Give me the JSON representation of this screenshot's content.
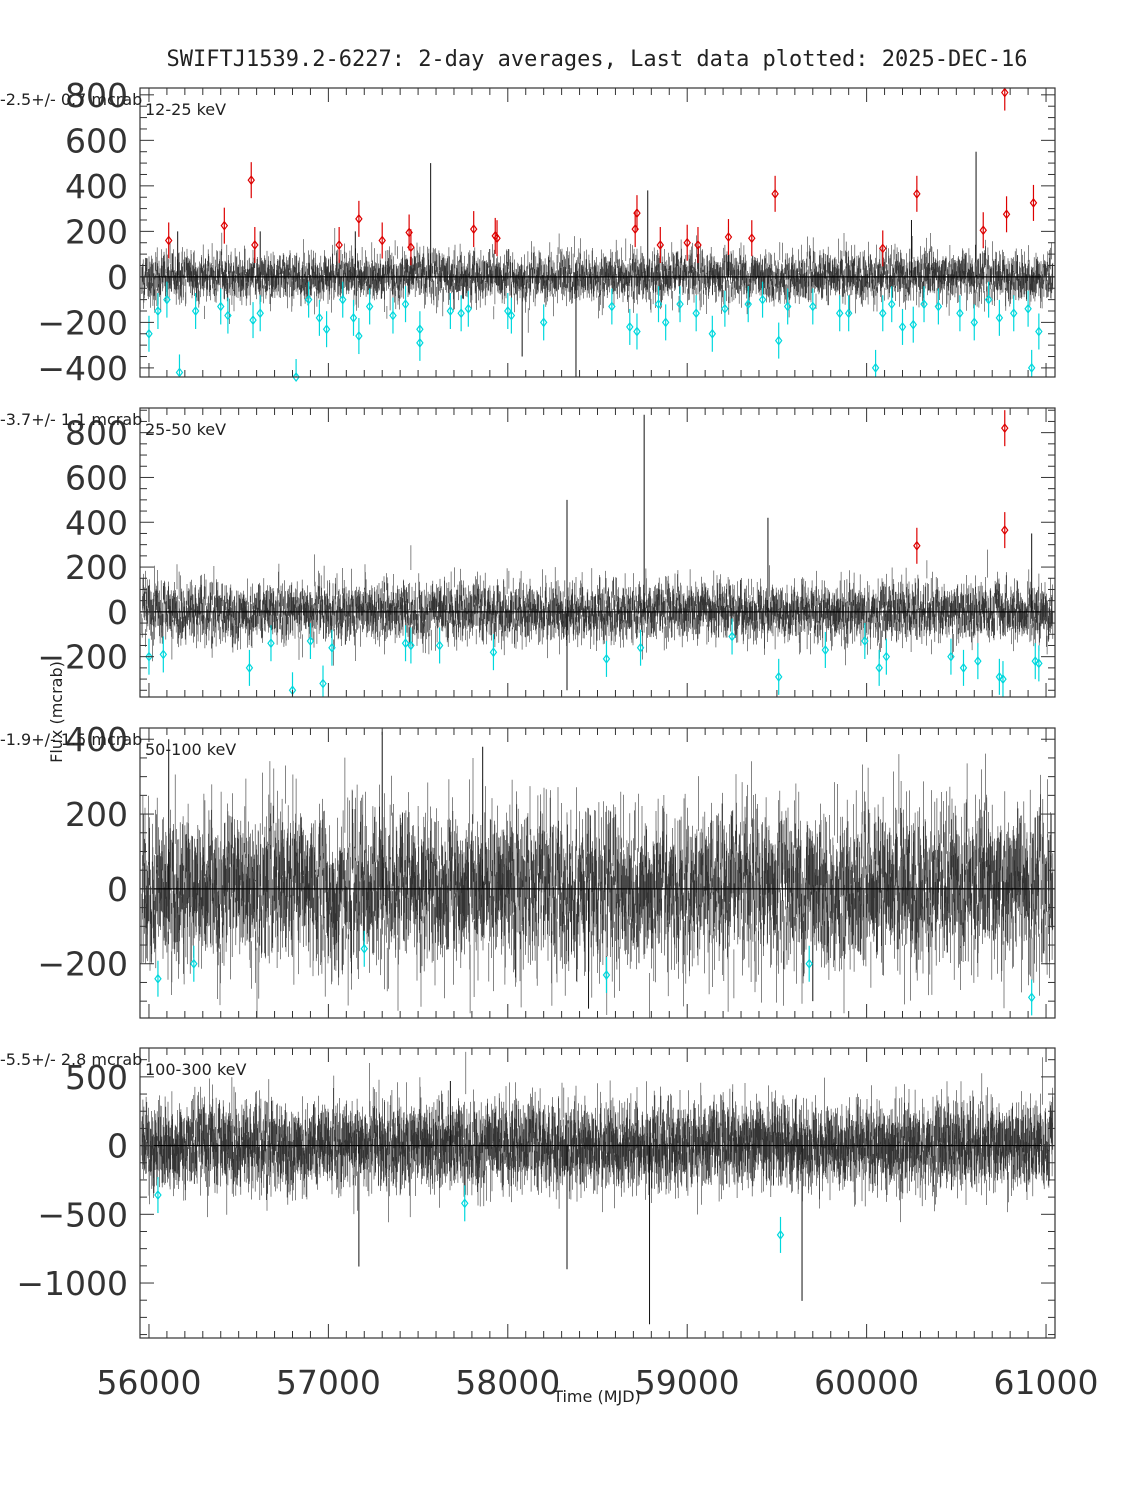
{
  "chart_data": {
    "type": "scatter",
    "title": "SWIFTJ1539.2-6227:  2-day averages,  Last data plotted: 2025-DEC-16",
    "xlabel": "Time (MJD)",
    "ylabel": "Flux (mcrab)",
    "xlim": [
      55950,
      61050
    ],
    "x_ticks": [
      56000,
      57000,
      58000,
      59000,
      60000,
      61000
    ],
    "panels": [
      {
        "band": "12-25 keV",
        "mean_text": "-2.5+/-  0.7 mcrab",
        "ylim": [
          -440,
          830
        ],
        "y_ticks": [
          -400,
          -200,
          0,
          200,
          400,
          600,
          800
        ],
        "noise_sigma": 45,
        "err": 55,
        "positive_outliers": [
          [
            56110,
            160
          ],
          [
            56420,
            225
          ],
          [
            56570,
            425
          ],
          [
            56590,
            140
          ],
          [
            57060,
            140
          ],
          [
            57170,
            255
          ],
          [
            57300,
            160
          ],
          [
            57450,
            195
          ],
          [
            57460,
            130
          ],
          [
            57810,
            210
          ],
          [
            57930,
            180
          ],
          [
            57940,
            170
          ],
          [
            58710,
            210
          ],
          [
            58720,
            280
          ],
          [
            58850,
            140
          ],
          [
            59000,
            150
          ],
          [
            59060,
            140
          ],
          [
            59230,
            175
          ],
          [
            59360,
            170
          ],
          [
            59490,
            365
          ],
          [
            60090,
            125
          ],
          [
            60280,
            365
          ],
          [
            60650,
            205
          ],
          [
            60780,
            275
          ],
          [
            60930,
            325
          ],
          [
            60770,
            810
          ]
        ],
        "negative_outliers": [
          [
            56000,
            -250
          ],
          [
            56050,
            -150
          ],
          [
            56100,
            -100
          ],
          [
            56170,
            -420
          ],
          [
            56260,
            -150
          ],
          [
            56400,
            -130
          ],
          [
            56440,
            -170
          ],
          [
            56580,
            -190
          ],
          [
            56620,
            -160
          ],
          [
            56820,
            -440
          ],
          [
            56890,
            -100
          ],
          [
            56950,
            -180
          ],
          [
            56990,
            -230
          ],
          [
            57080,
            -100
          ],
          [
            57140,
            -180
          ],
          [
            57170,
            -260
          ],
          [
            57230,
            -130
          ],
          [
            57360,
            -170
          ],
          [
            57430,
            -120
          ],
          [
            57510,
            -230
          ],
          [
            57510,
            -290
          ],
          [
            57680,
            -150
          ],
          [
            57740,
            -160
          ],
          [
            57780,
            -140
          ],
          [
            58000,
            -150
          ],
          [
            58020,
            -170
          ],
          [
            58200,
            -200
          ],
          [
            58580,
            -130
          ],
          [
            58680,
            -220
          ],
          [
            58720,
            -240
          ],
          [
            58840,
            -120
          ],
          [
            58880,
            -200
          ],
          [
            58960,
            -120
          ],
          [
            59050,
            -160
          ],
          [
            59140,
            -250
          ],
          [
            59210,
            -140
          ],
          [
            59340,
            -120
          ],
          [
            59420,
            -100
          ],
          [
            59510,
            -280
          ],
          [
            59560,
            -130
          ],
          [
            59700,
            -130
          ],
          [
            59850,
            -160
          ],
          [
            59900,
            -160
          ],
          [
            60050,
            -400
          ],
          [
            60090,
            -160
          ],
          [
            60140,
            -120
          ],
          [
            60200,
            -220
          ],
          [
            60260,
            -210
          ],
          [
            60320,
            -120
          ],
          [
            60400,
            -130
          ],
          [
            60520,
            -160
          ],
          [
            60600,
            -200
          ],
          [
            60680,
            -100
          ],
          [
            60740,
            -180
          ],
          [
            60820,
            -160
          ],
          [
            60900,
            -140
          ],
          [
            60920,
            -400
          ],
          [
            60960,
            -240
          ]
        ],
        "spikes": [
          [
            56160,
            200
          ],
          [
            56620,
            200
          ],
          [
            57150,
            200
          ],
          [
            57570,
            500
          ],
          [
            58080,
            -350
          ],
          [
            58380,
            -440
          ],
          [
            58780,
            380
          ],
          [
            59230,
            220
          ],
          [
            60250,
            250
          ],
          [
            60610,
            550
          ]
        ]
      },
      {
        "band": "25-50 keV",
        "mean_text": "-3.7+/-  1.1 mcrab",
        "ylim": [
          -380,
          910
        ],
        "y_ticks": [
          -200,
          0,
          200,
          400,
          600,
          800
        ],
        "noise_sigma": 55,
        "err": 65,
        "positive_outliers": [
          [
            60280,
            295
          ],
          [
            60770,
            820
          ],
          [
            60770,
            365
          ]
        ],
        "negative_outliers": [
          [
            56000,
            -200
          ],
          [
            56080,
            -190
          ],
          [
            56560,
            -250
          ],
          [
            56680,
            -140
          ],
          [
            56800,
            -350
          ],
          [
            56900,
            -130
          ],
          [
            56970,
            -320
          ],
          [
            57020,
            -160
          ],
          [
            57430,
            -140
          ],
          [
            57460,
            -150
          ],
          [
            57620,
            -150
          ],
          [
            57920,
            -180
          ],
          [
            58550,
            -210
          ],
          [
            58740,
            -160
          ],
          [
            59250,
            -110
          ],
          [
            59510,
            -290
          ],
          [
            59770,
            -170
          ],
          [
            59990,
            -130
          ],
          [
            60070,
            -250
          ],
          [
            60110,
            -200
          ],
          [
            60470,
            -200
          ],
          [
            60540,
            -250
          ],
          [
            60620,
            -220
          ],
          [
            60740,
            -290
          ],
          [
            60760,
            -300
          ],
          [
            60940,
            -220
          ],
          [
            60960,
            -230
          ]
        ],
        "spikes": [
          [
            58330,
            500
          ],
          [
            58330,
            -350
          ],
          [
            58760,
            880
          ],
          [
            59450,
            420
          ],
          [
            60920,
            350
          ]
        ]
      },
      {
        "band": "50-100 keV",
        "mean_text": "-1.9+/-  1.5 mcrab",
        "ylim": [
          -345,
          430
        ],
        "y_ticks": [
          -200,
          0,
          200,
          400
        ],
        "noise_sigma": 85,
        "err": 100,
        "positive_outliers": [],
        "negative_outliers": [
          [
            56050,
            -240
          ],
          [
            56250,
            -200
          ],
          [
            57200,
            -160
          ],
          [
            58550,
            -230
          ],
          [
            59680,
            -200
          ],
          [
            60920,
            -290
          ]
        ],
        "spikes": [
          [
            56110,
            400
          ],
          [
            57300,
            420
          ],
          [
            57860,
            380
          ],
          [
            58450,
            -320
          ],
          [
            59700,
            -300
          ]
        ]
      },
      {
        "band": "100-300 keV",
        "mean_text": "-5.5+/-  2.8 mcrab",
        "ylim": [
          -1400,
          710
        ],
        "y_ticks": [
          -1000,
          -500,
          0,
          500
        ],
        "noise_sigma": 120,
        "err": 180,
        "positive_outliers": [],
        "negative_outliers": [
          [
            56050,
            -360
          ],
          [
            57760,
            -420
          ],
          [
            59520,
            -650
          ]
        ],
        "spikes": [
          [
            57170,
            -880
          ],
          [
            57680,
            470
          ],
          [
            58330,
            -900
          ],
          [
            58790,
            -1300
          ],
          [
            59640,
            -1130
          ]
        ]
      }
    ],
    "grid": false,
    "colors": {
      "data": "#000000",
      "positive_outlier": "#dd0000",
      "negative_outlier": "#00d8dd",
      "axis": "#333333"
    }
  }
}
